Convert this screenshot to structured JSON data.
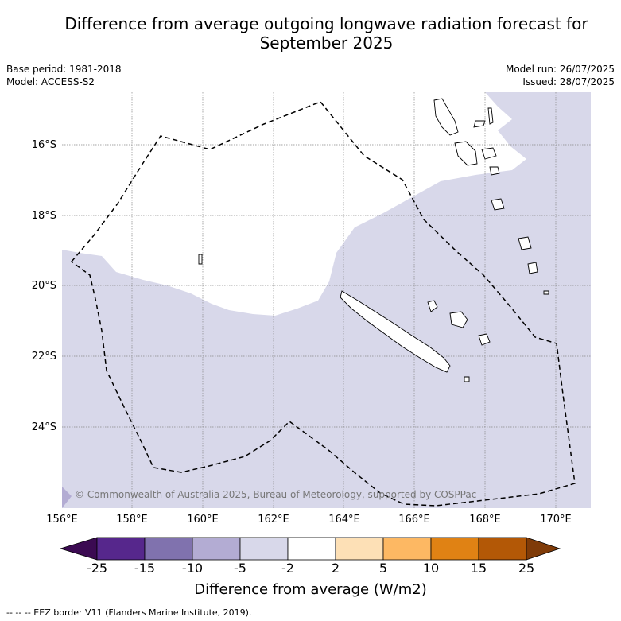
{
  "title": "Difference from average outgoing longwave radiation forecast for\nSeptember 2025",
  "meta": {
    "base_period": "Base period: 1981-2018",
    "model": "Model: ACCESS-S2",
    "model_run": "Model run: 26/07/2025",
    "issued": "Issued: 28/07/2025"
  },
  "map": {
    "copyright": "© Commonwealth of Australia 2025, Bureau of Meteorology, supported by COSPPac",
    "lat_ticks": [
      "16°S",
      "18°S",
      "20°S",
      "22°S",
      "24°S"
    ],
    "lon_ticks": [
      "156°E",
      "158°E",
      "160°E",
      "162°E",
      "164°E",
      "166°E",
      "168°E",
      "170°E"
    ],
    "colors": {
      "anomaly_light_purple": "#d8d8ea",
      "no_anomaly": "#ffffff",
      "coast": "#000000"
    }
  },
  "colorbar": {
    "title": "Difference from average (W/m2)",
    "ticks": [
      "-25",
      "-15",
      "-10",
      "-5",
      "-2",
      "2",
      "5",
      "10",
      "15",
      "25"
    ],
    "colors": [
      "#3b0a52",
      "#56278c",
      "#8072ae",
      "#b3acd3",
      "#d8d8ea",
      "#ffffff",
      "#fde0b6",
      "#fdb863",
      "#e08214",
      "#b35806",
      "#7f3b08"
    ]
  },
  "footnote": "--  --  -- EEZ border V11 (Flanders Marine Institute, 2019)."
}
